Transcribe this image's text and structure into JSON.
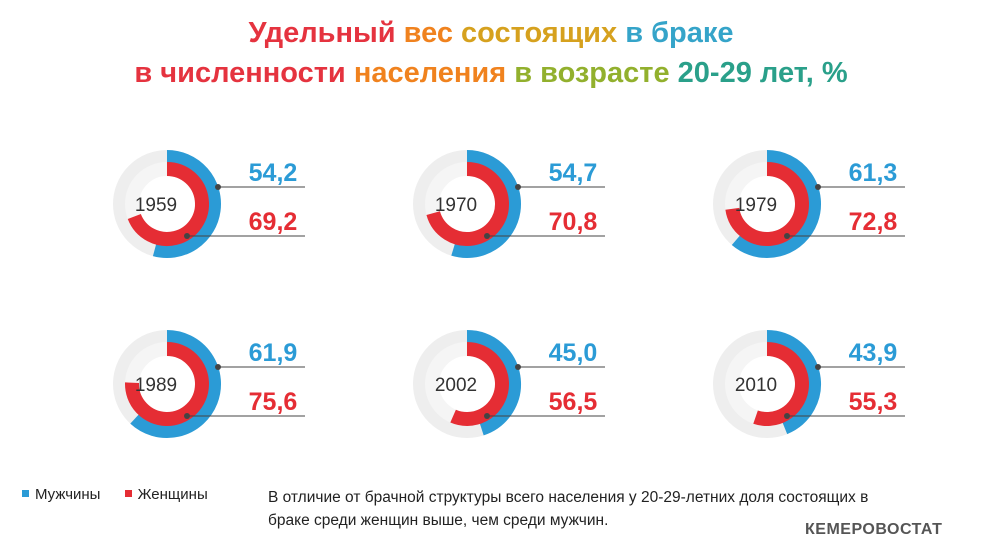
{
  "title": {
    "line1_parts": [
      {
        "text": "Удельный ",
        "color": "#e5333f"
      },
      {
        "text": "вес ",
        "color": "#f0821e"
      },
      {
        "text": "состоящих ",
        "color": "#d6a11e"
      },
      {
        "text": "в браке",
        "color": "#35a4c9"
      }
    ],
    "line2_parts": [
      {
        "text": "в численности ",
        "color": "#e5333f"
      },
      {
        "text": "населения ",
        "color": "#f0821e"
      },
      {
        "text": "в возрасте ",
        "color": "#92b02d"
      },
      {
        "text": "20-29 лет, %",
        "color": "#2aa08a"
      }
    ]
  },
  "chart_data": {
    "type": "donut",
    "unit": "%",
    "max": 100,
    "series": [
      {
        "name": "Мужчины",
        "color": "#2b9bd6"
      },
      {
        "name": "Женщины",
        "color": "#e52d34"
      }
    ],
    "items": [
      {
        "year": "1959",
        "men": 54.2,
        "women": 69.2,
        "men_label": "54,2",
        "women_label": "69,2"
      },
      {
        "year": "1970",
        "men": 54.7,
        "women": 70.8,
        "men_label": "54,7",
        "women_label": "70,8"
      },
      {
        "year": "1979",
        "men": 61.3,
        "women": 72.8,
        "men_label": "61,3",
        "women_label": "72,8"
      },
      {
        "year": "1989",
        "men": 61.9,
        "women": 75.6,
        "men_label": "61,9",
        "women_label": "75,6"
      },
      {
        "year": "2002",
        "men": 45.0,
        "women": 56.5,
        "men_label": "45,0",
        "women_label": "56,5"
      },
      {
        "year": "2010",
        "men": 43.9,
        "women": 55.3,
        "men_label": "43,9",
        "women_label": "55,3"
      }
    ]
  },
  "legend": {
    "men": "Мужчины",
    "women": "Женщины"
  },
  "colors": {
    "men": "#2b9bd6",
    "women": "#e52d34",
    "track": "#eeeeee",
    "leader": "#444444",
    "year_text": "#333333"
  },
  "note": "В отличие от брачной структуры всего населения у 20-29-летних доля состоящих в браке среди женщин выше, чем среди мужчин.",
  "brand": "КЕМЕРОВОСТАТ"
}
